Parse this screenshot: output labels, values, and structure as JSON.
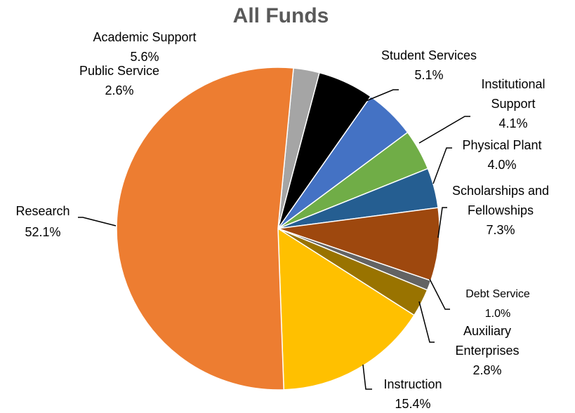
{
  "chart_data": {
    "type": "pie",
    "title": "All Funds",
    "slices": [
      {
        "name": "Public Service",
        "value": 2.6,
        "label": "2.6%",
        "color": "#a5a5a5"
      },
      {
        "name": "Academic Support",
        "value": 5.6,
        "label": "5.6%",
        "color": "#000000"
      },
      {
        "name": "Student Services",
        "value": 5.1,
        "label": "5.1%",
        "color": "#4472c4"
      },
      {
        "name": "Institutional Support",
        "value": 4.1,
        "label": "4.1%",
        "color": "#70ad47"
      },
      {
        "name": "Physical Plant",
        "value": 4.0,
        "label": "4.0%",
        "color": "#255e91"
      },
      {
        "name": "Scholarships and Fellowships",
        "value": 7.3,
        "label": "7.3%",
        "color": "#9e480e"
      },
      {
        "name": "Debt Service",
        "value": 1.0,
        "label": "1.0%",
        "color": "#636363"
      },
      {
        "name": "Auxiliary Enterprises",
        "value": 2.8,
        "label": "2.8%",
        "color": "#997300"
      },
      {
        "name": "Instruction",
        "value": 15.4,
        "label": "15.4%",
        "color": "#ffc000"
      },
      {
        "name": "Research",
        "value": 52.1,
        "label": "52.1%",
        "color": "#ed7d31"
      }
    ]
  }
}
